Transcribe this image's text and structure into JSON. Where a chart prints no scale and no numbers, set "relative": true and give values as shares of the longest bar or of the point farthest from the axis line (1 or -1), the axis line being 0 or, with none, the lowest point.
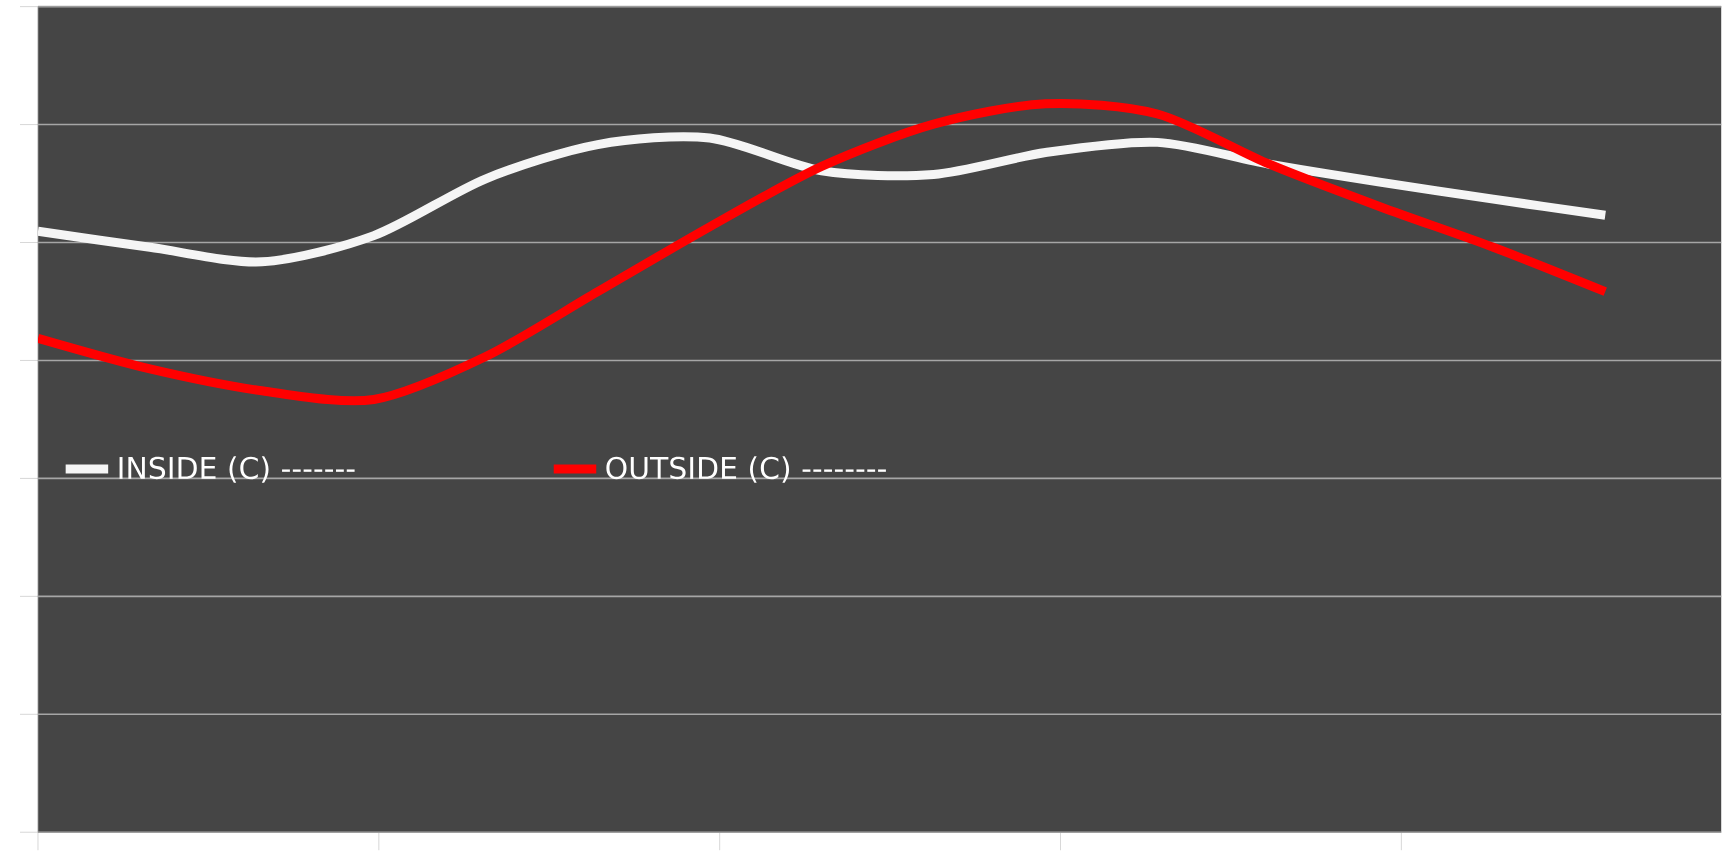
{
  "chart_data": {
    "type": "line",
    "relative": true,
    "grid": "y",
    "legend": "left",
    "marker": "none",
    "line_style": "solid",
    "categories": [
      null,
      null,
      null,
      null,
      null,
      null,
      null,
      null,
      null,
      null,
      null,
      null,
      null,
      null,
      null
    ],
    "series": [
      {
        "name": "INSIDE (C) -------",
        "color": "#f5f5f5",
        "values": [
          0.825,
          0.803,
          0.783,
          0.819,
          0.897,
          0.944,
          0.953,
          0.908,
          0.903,
          0.933,
          0.947,
          0.917,
          0.892,
          0.869,
          0.847
        ]
      },
      {
        "name": "OUTSIDE (C) --------",
        "color": "#ff0000",
        "values": [
          0.678,
          0.636,
          0.606,
          0.594,
          0.653,
          0.742,
          0.831,
          0.914,
          0.972,
          1,
          0.986,
          0.917,
          0.858,
          0.803,
          0.742
        ]
      }
    ]
  }
}
